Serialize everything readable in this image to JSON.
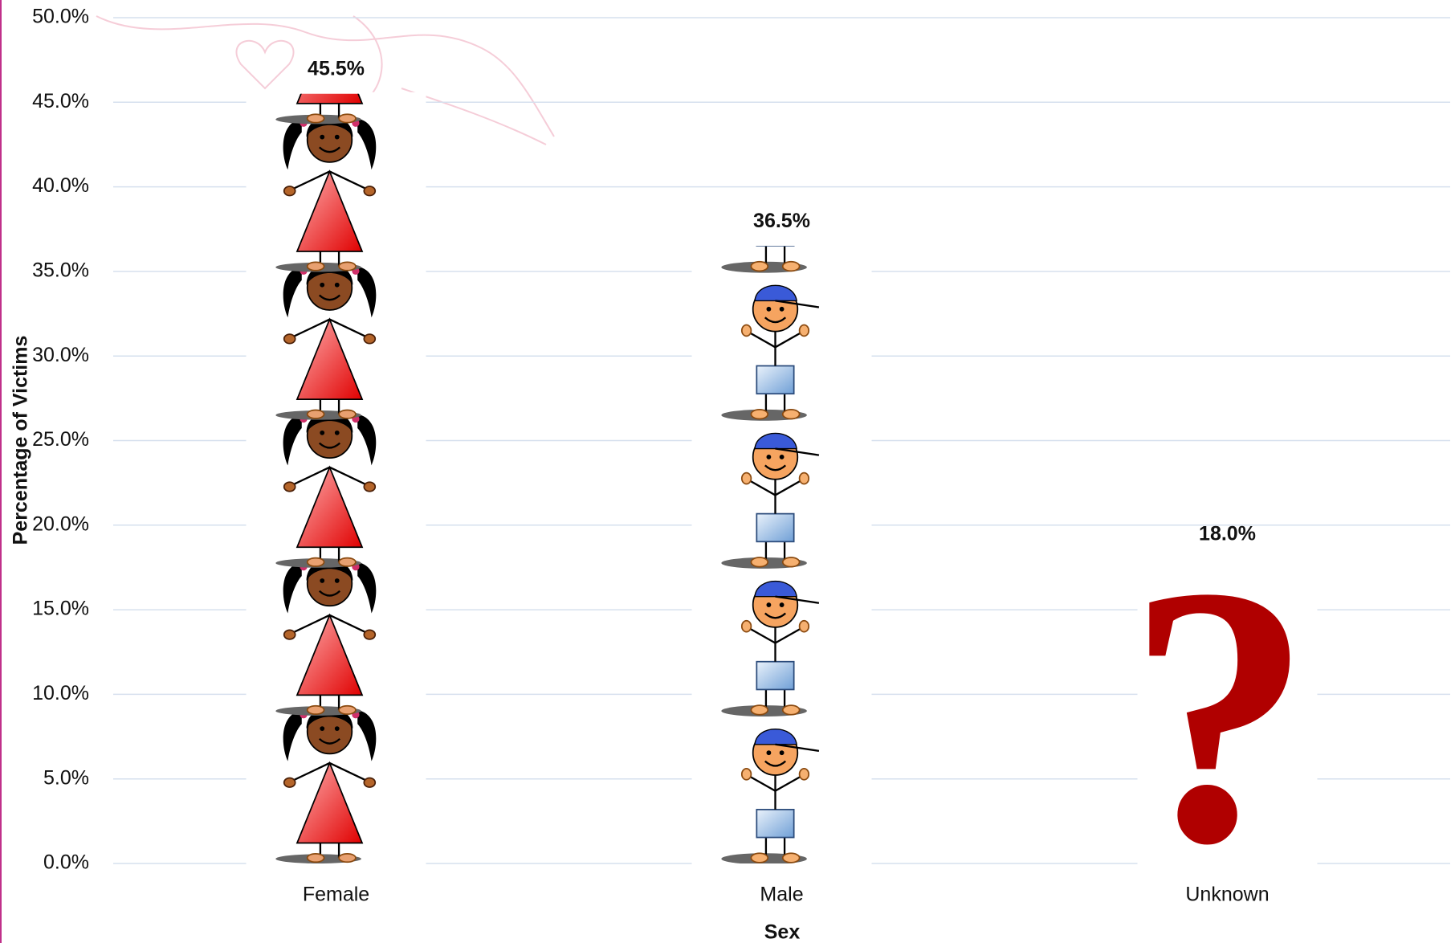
{
  "chart_data": {
    "type": "pictograph",
    "x_label": "Sex",
    "y_label": "Percentage of Victims",
    "categories": [
      "Female",
      "Male",
      "Unknown"
    ],
    "values": [
      45.5,
      36.5,
      18.0
    ],
    "value_labels": [
      "45.5%",
      "36.5%",
      "18.0%"
    ],
    "ylim": [
      0,
      50
    ],
    "yticks": [
      {
        "value": 0,
        "label": "0.0%"
      },
      {
        "value": 5,
        "label": "5.0%"
      },
      {
        "value": 10,
        "label": "10.0%"
      },
      {
        "value": 15,
        "label": "15.0%"
      },
      {
        "value": 20,
        "label": "20.0%"
      },
      {
        "value": 25,
        "label": "25.0%"
      },
      {
        "value": 30,
        "label": "30.0%"
      },
      {
        "value": 35,
        "label": "35.0%"
      },
      {
        "value": 40,
        "label": "40.0%"
      },
      {
        "value": 45,
        "label": "45.0%"
      },
      {
        "value": 50,
        "label": "50.0%"
      }
    ],
    "grid": true
  }
}
